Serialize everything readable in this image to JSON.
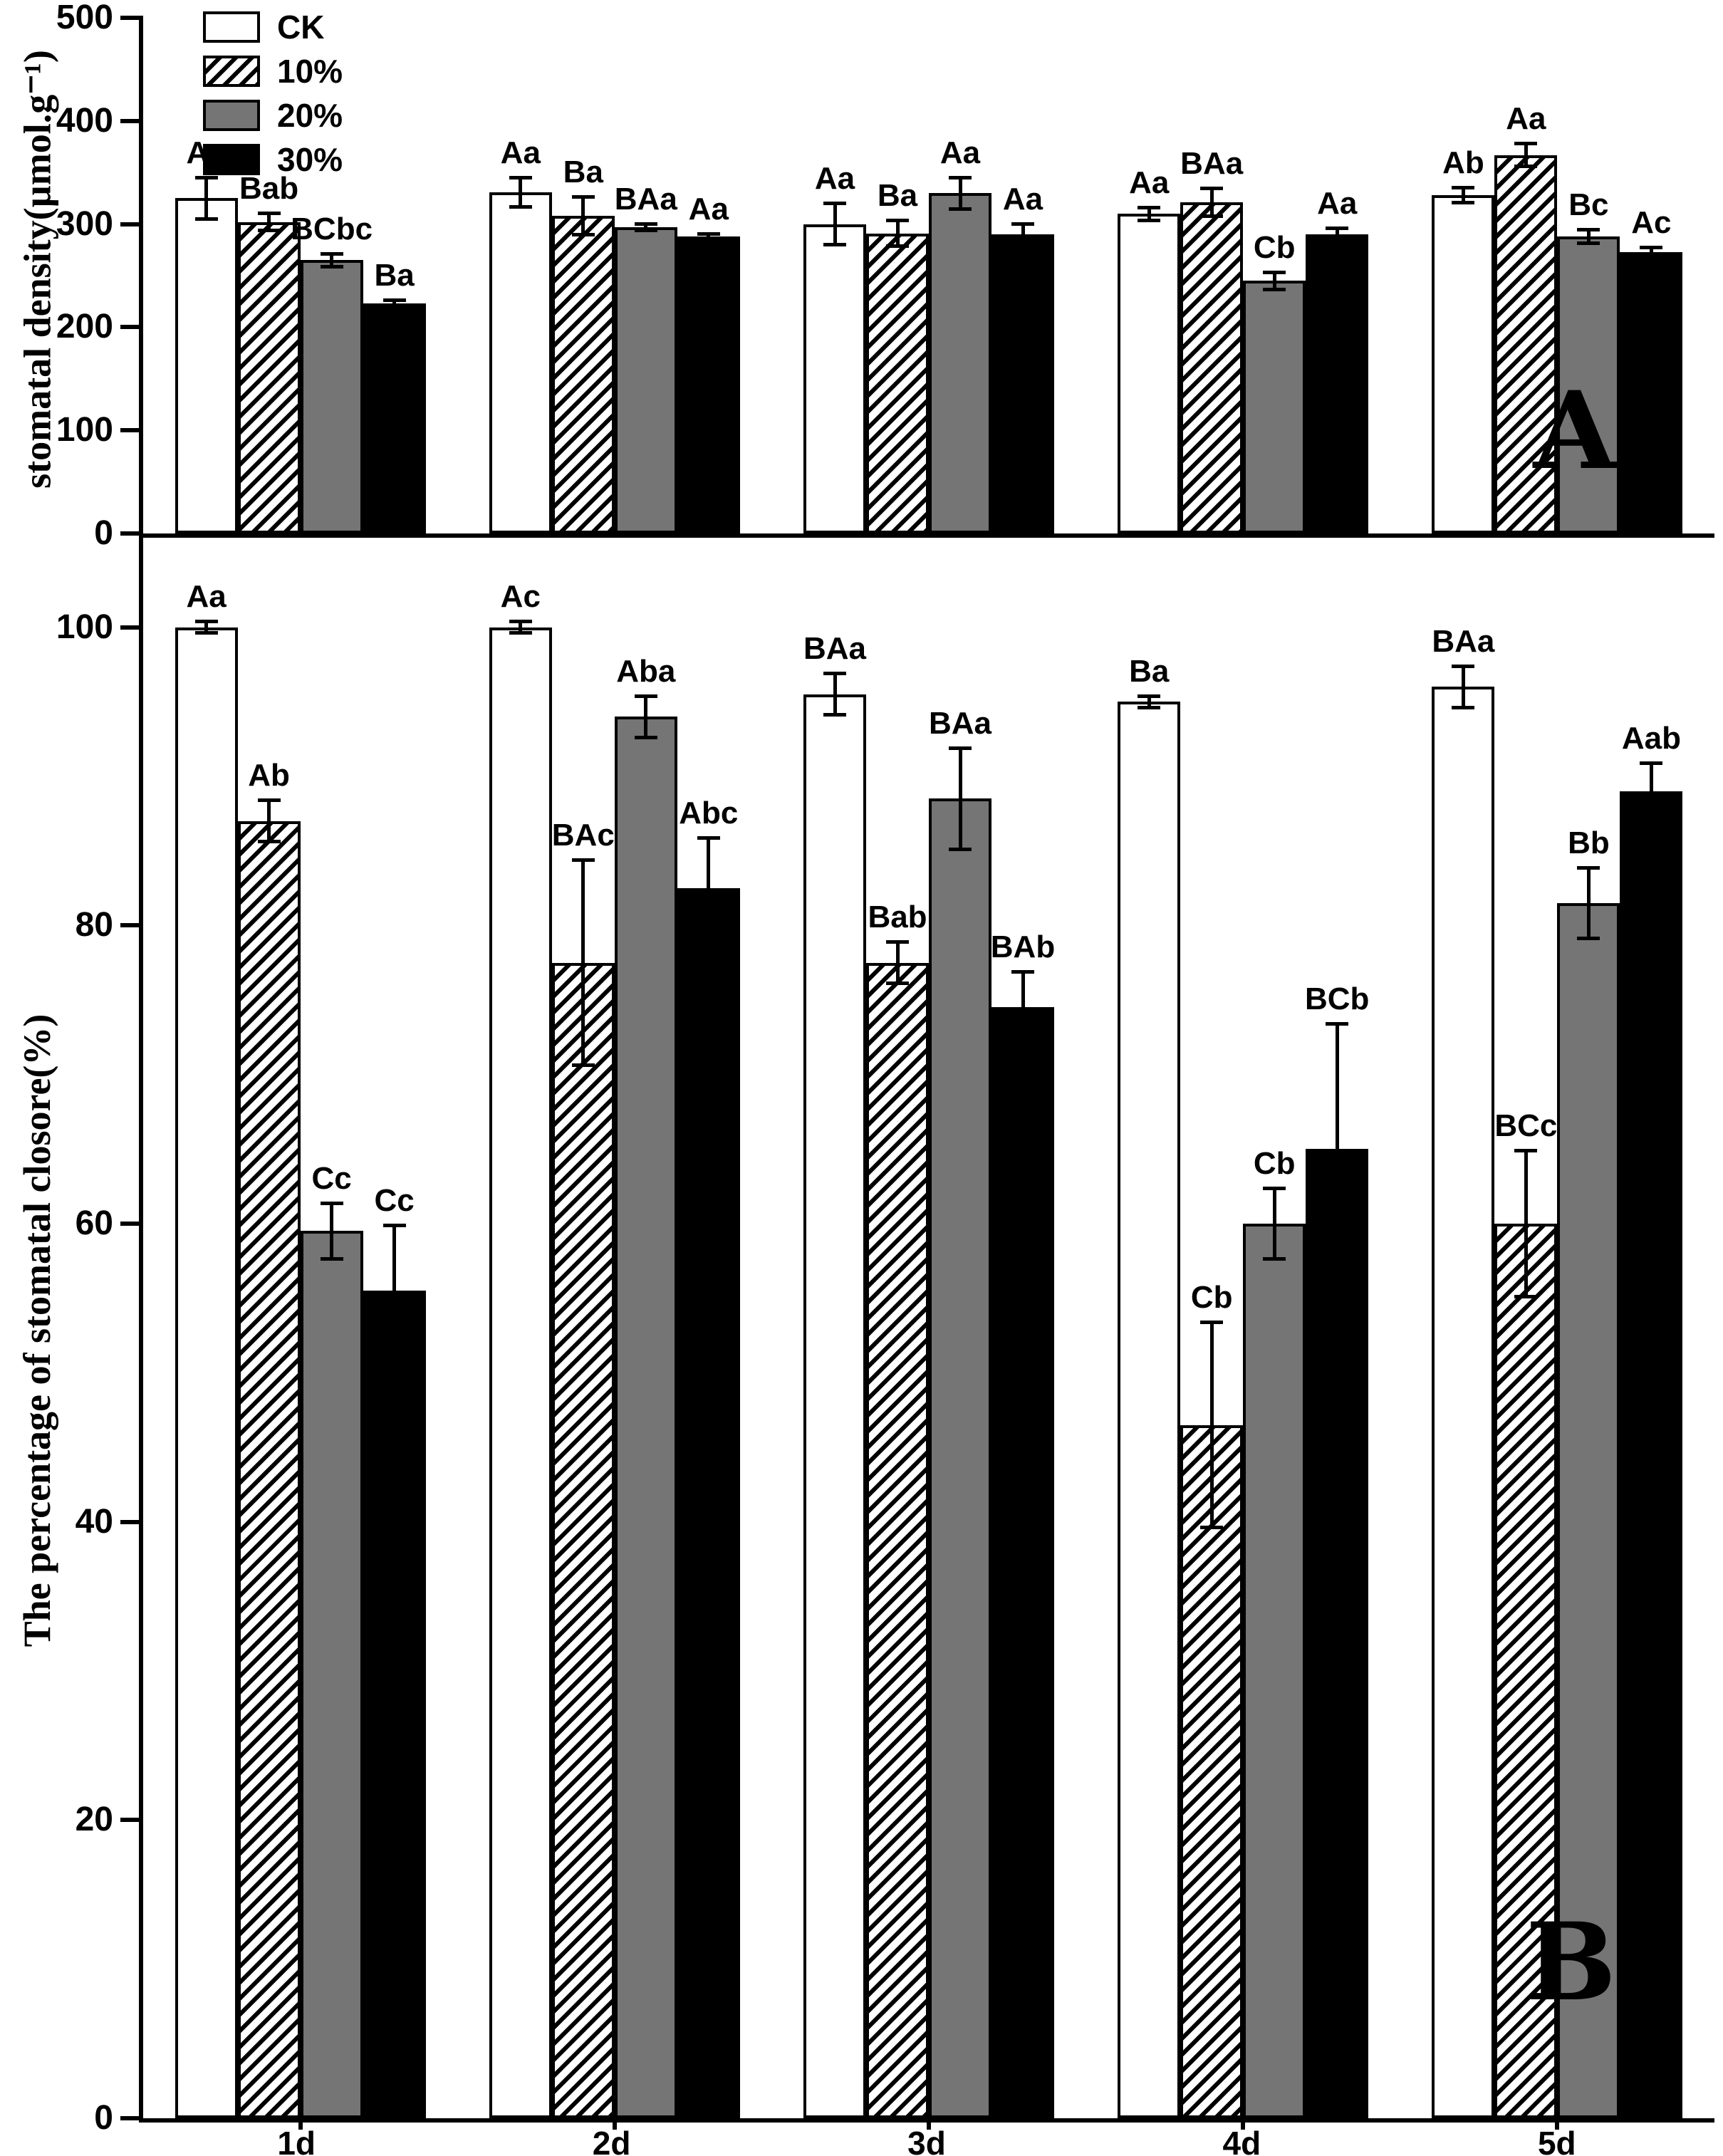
{
  "figure": {
    "panel_a_letter": "A",
    "panel_b_letter": "B",
    "legend": [
      {
        "label": "CK",
        "fill": "white"
      },
      {
        "label": "10%",
        "fill": "diagonal-hatch"
      },
      {
        "label": "20%",
        "fill": "gray"
      },
      {
        "label": "30%",
        "fill": "black"
      }
    ],
    "colors": {
      "axis": "#000000",
      "gray_bar": "#757575",
      "black_bar": "#000000",
      "background": "#ffffff"
    }
  },
  "chart_data": [
    {
      "type": "bar",
      "panel": "A",
      "title": "",
      "xlabel": "",
      "ylabel": "stomatal density(µmol.g⁻¹)",
      "ylim": [
        0,
        500
      ],
      "yticks": [
        0,
        100,
        200,
        300,
        400,
        500
      ],
      "grid": false,
      "legend_position": "top-left",
      "categories": [
        "1d",
        "2d",
        "3d",
        "4d",
        "5d"
      ],
      "series": [
        {
          "name": "CK",
          "values": [
            325,
            331,
            300,
            310,
            328
          ],
          "errors": [
            22,
            16,
            22,
            8,
            9
          ],
          "labels": [
            "Aa",
            "Aa",
            "Aa",
            "Aa",
            "Ab"
          ]
        },
        {
          "name": "10%",
          "values": [
            302,
            308,
            291,
            321,
            367
          ],
          "errors": [
            10,
            20,
            14,
            15,
            13
          ],
          "labels": [
            "Bab",
            "Ba",
            "Ba",
            "BAa",
            "Aa"
          ]
        },
        {
          "name": "20%",
          "values": [
            265,
            297,
            330,
            245,
            288
          ],
          "errors": [
            8,
            5,
            17,
            10,
            8
          ],
          "labels": [
            "BCbc",
            "BAa",
            "Aa",
            "Cb",
            "Bc"
          ]
        },
        {
          "name": "30%",
          "values": [
            223,
            288,
            290,
            290,
            273
          ],
          "errors": [
            5,
            4,
            12,
            8,
            6
          ],
          "labels": [
            "Ba",
            "Aa",
            "Aa",
            "Aa",
            "Ac"
          ]
        }
      ]
    },
    {
      "type": "bar",
      "panel": "B",
      "title": "",
      "xlabel": "",
      "ylabel": "The percentage of stomatal closore(%)",
      "ylim": [
        0,
        106
      ],
      "yticks": [
        0,
        20,
        40,
        60,
        80,
        100
      ],
      "grid": false,
      "categories": [
        "1d",
        "2d",
        "3d",
        "4d",
        "5d"
      ],
      "series": [
        {
          "name": "CK",
          "values": [
            100,
            100,
            95.5,
            95,
            96
          ],
          "errors": [
            0.5,
            0.5,
            1.5,
            0.5,
            1.5
          ],
          "labels": [
            "Aa",
            "Ac",
            "BAa",
            "Ba",
            "BAa"
          ]
        },
        {
          "name": "10%",
          "values": [
            87,
            77.5,
            77.5,
            46.5,
            60
          ],
          "errors": [
            1.5,
            7,
            1.5,
            7,
            5
          ],
          "labels": [
            "Ab",
            "BAc",
            "Bab",
            "Cb",
            "BCc"
          ]
        },
        {
          "name": "20%",
          "values": [
            59.5,
            94,
            88.5,
            60,
            81.5
          ],
          "errors": [
            2,
            1.5,
            3.5,
            2.5,
            2.5
          ],
          "labels": [
            "Cc",
            "Aba",
            "BAa",
            "Cb",
            "Bb"
          ]
        },
        {
          "name": "30%",
          "values": [
            55.5,
            82.5,
            74.5,
            65,
            89
          ],
          "errors": [
            4.5,
            3.5,
            2.5,
            8.5,
            2
          ],
          "labels": [
            "Cc",
            "Abc",
            "BAb",
            "BCb",
            "Aab"
          ]
        }
      ]
    }
  ]
}
